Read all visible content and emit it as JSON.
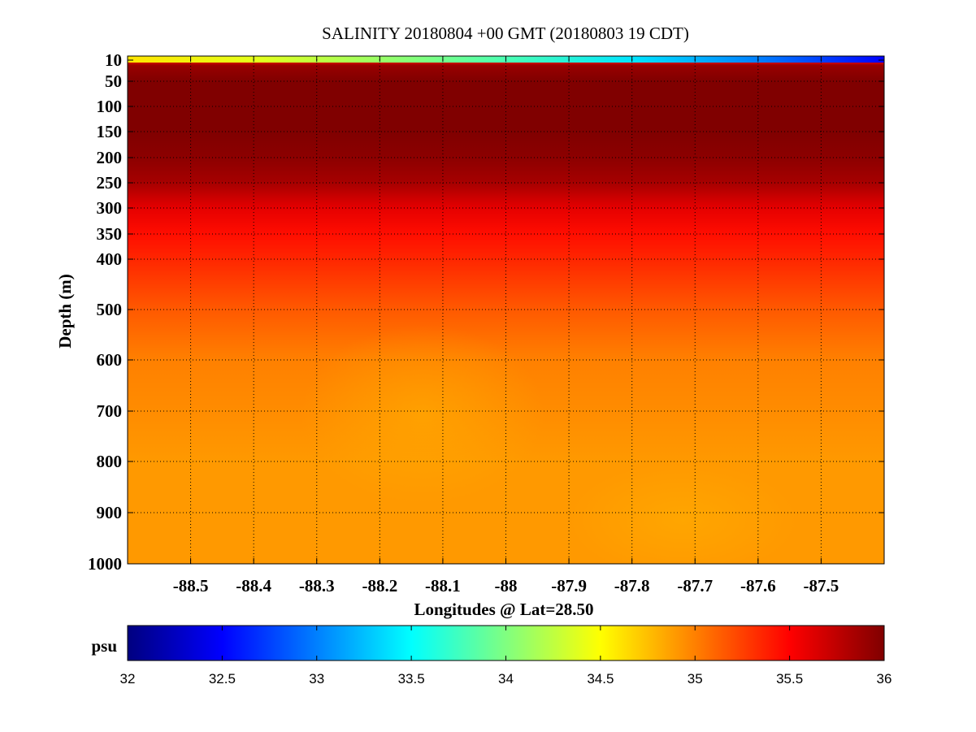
{
  "chart_data": [
    {
      "type": "heatmap",
      "title": "SALINITY 20180804 +00 GMT (20180803 19 CDT)",
      "xlabel": "Longitudes @ Lat=28.50",
      "ylabel": "Depth (m)",
      "xlim": [
        -88.6,
        -87.4
      ],
      "ylim": [
        1000,
        0
      ],
      "x_ticks": [
        -88.5,
        -88.4,
        -88.3,
        -88.2,
        -88.1,
        -88,
        -87.9,
        -87.8,
        -87.7,
        -87.6,
        -87.5
      ],
      "x_tick_labels": [
        "-88.5",
        "-88.4",
        "-88.3",
        "-88.2",
        "-88.1",
        "-88",
        "-87.9",
        "-87.8",
        "-87.7",
        "-87.6",
        "-87.5"
      ],
      "y_ticks": [
        10,
        50,
        100,
        150,
        200,
        250,
        300,
        350,
        400,
        500,
        600,
        700,
        800,
        900,
        1000
      ],
      "y_tick_labels": [
        "10",
        "50",
        "100",
        "150",
        "200",
        "250",
        "300",
        "350",
        "400",
        "500",
        "600",
        "700",
        "800",
        "900",
        "1000"
      ],
      "grid": true,
      "units": "psu",
      "color_range": [
        32,
        36
      ],
      "colormap": "jet",
      "profile_depths": [
        0,
        5,
        10,
        20,
        50,
        100,
        150,
        200,
        250,
        300,
        350,
        400,
        500,
        600,
        700,
        800,
        900,
        1000
      ],
      "profile_values": [
        35.0,
        35.2,
        35.5,
        35.9,
        36.0,
        36.0,
        36.0,
        35.95,
        35.85,
        35.6,
        35.45,
        35.35,
        35.15,
        35.0,
        34.95,
        34.9,
        34.9,
        34.9
      ],
      "surface_layer": {
        "x": [
          -88.6,
          -88.4,
          -88.2,
          -88.0,
          -87.8,
          -87.6,
          -87.4
        ],
        "values": [
          34.6,
          34.4,
          34.1,
          33.8,
          33.4,
          33.0,
          32.5
        ]
      }
    },
    {
      "type": "colorbar",
      "label": "psu",
      "range": [
        32,
        36
      ],
      "ticks": [
        32,
        32.5,
        33,
        33.5,
        34,
        34.5,
        35,
        35.5,
        36
      ],
      "tick_labels": [
        "32",
        "32.5",
        "33",
        "33.5",
        "34",
        "34.5",
        "35",
        "35.5",
        "36"
      ]
    }
  ]
}
